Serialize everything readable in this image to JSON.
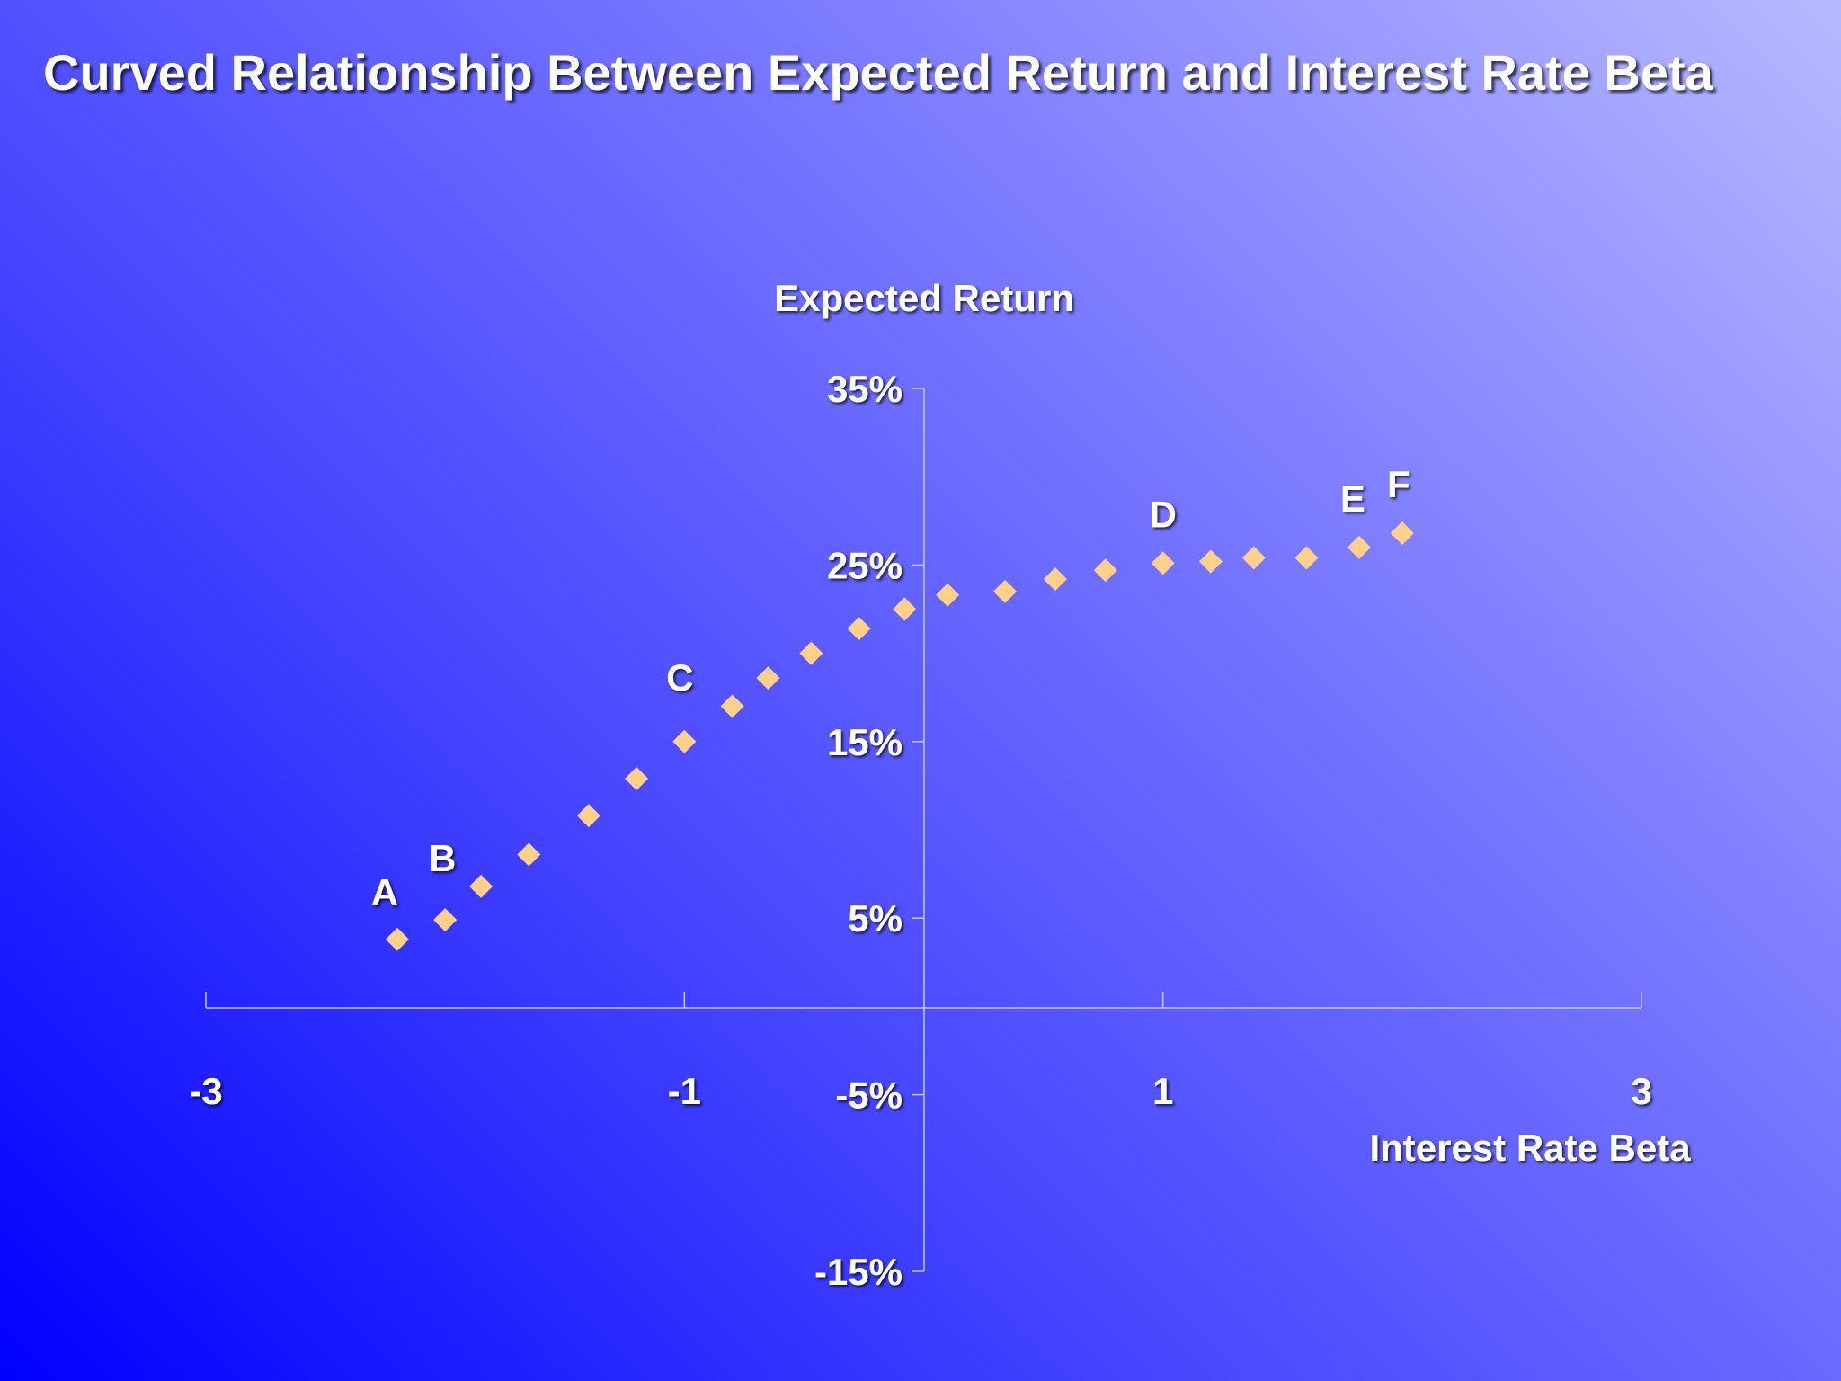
{
  "slide": {
    "title": "Curved Relationship Between Expected Return and Interest Rate Beta"
  },
  "chart_data": {
    "type": "scatter",
    "title": "Curved Relationship Between Expected Return and Interest Rate Beta",
    "xlabel": "Interest Rate Beta",
    "ylabel": "Expected Return",
    "xlim": [
      -3,
      3
    ],
    "ylim": [
      -15,
      35
    ],
    "x_ticks": [
      -3,
      -1,
      1,
      3
    ],
    "x_tick_labels": [
      "-3",
      "-1",
      "1",
      "3"
    ],
    "y_ticks": [
      35,
      25,
      15,
      5,
      -5,
      -15
    ],
    "y_tick_labels": [
      "35%",
      "25%",
      "15%",
      "5%",
      "-5%",
      "-15%"
    ],
    "marker": "diamond",
    "marker_color": "#ffd08a",
    "axis_color": "#c8c8ff",
    "grid": false,
    "legend": "none",
    "series": [
      {
        "x": [
          -2.2,
          -2.0,
          -1.85,
          -1.65,
          -1.4,
          -1.2,
          -1.0,
          -0.8,
          -0.65,
          -0.47,
          -0.27,
          -0.08,
          0.1,
          0.34,
          0.55,
          0.76,
          1.0,
          1.2,
          1.38,
          1.6,
          1.82,
          2.0
        ],
        "y": [
          3.8,
          4.9,
          6.8,
          8.6,
          10.8,
          12.9,
          15.0,
          17.0,
          18.6,
          20.0,
          21.4,
          22.5,
          23.3,
          23.5,
          24.2,
          24.7,
          25.1,
          25.2,
          25.4,
          25.4,
          26.0,
          26.8
        ]
      }
    ],
    "annotations": [
      {
        "label": "A",
        "x": -2.2,
        "y": 3.8
      },
      {
        "label": "B",
        "x": -2.0,
        "y": 4.9
      },
      {
        "label": "C",
        "x": -1.0,
        "y": 15.0
      },
      {
        "label": "D",
        "x": 1.0,
        "y": 25.1
      },
      {
        "label": "E",
        "x": 1.82,
        "y": 26.0
      },
      {
        "label": "F",
        "x": 2.0,
        "y": 26.8
      }
    ]
  }
}
